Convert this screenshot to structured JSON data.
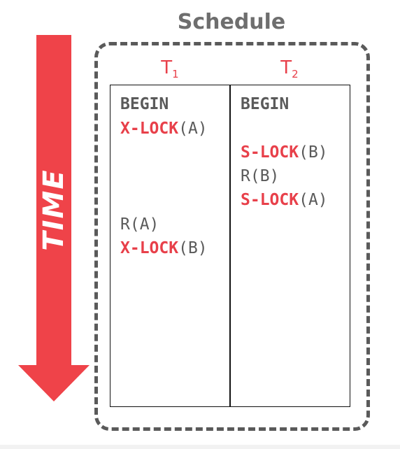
{
  "diagram": {
    "title": "Schedule",
    "time_label": "TIME",
    "colors": {
      "accent": "#e8404a",
      "text": "#5a5a5a",
      "border": "#5a5a5a"
    },
    "transactions": [
      {
        "name": "T",
        "subscript": "1"
      },
      {
        "name": "T",
        "subscript": "2"
      }
    ],
    "t1_ops": {
      "begin": "BEGIN",
      "xlock_a_name": "X-LOCK",
      "xlock_a_arg": "(A)",
      "read_a": "R(A)",
      "xlock_b_name": "X-LOCK",
      "xlock_b_arg": "(B)"
    },
    "t2_ops": {
      "begin": "BEGIN",
      "slock_b_name": "S-LOCK",
      "slock_b_arg": "(B)",
      "read_b": "R(B)",
      "slock_a_name": "S-LOCK",
      "slock_a_arg": "(A)"
    }
  }
}
